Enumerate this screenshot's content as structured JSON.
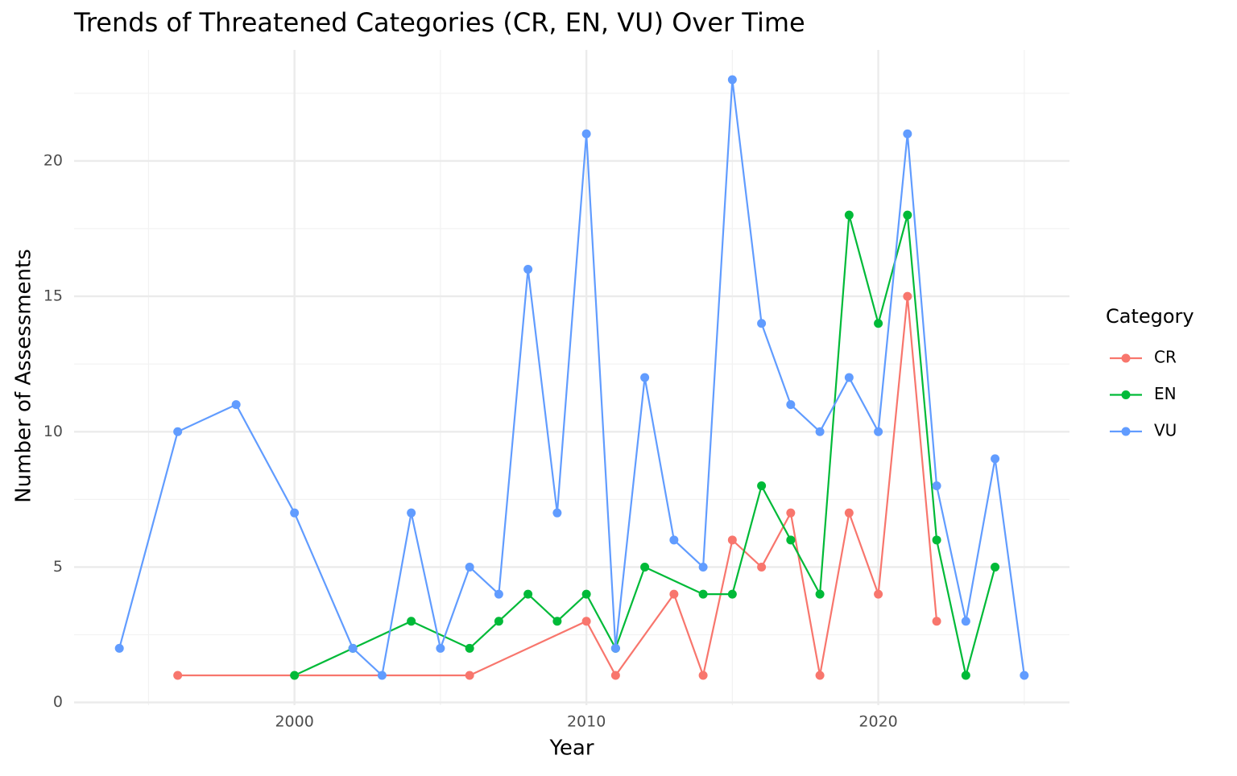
{
  "chart_data": {
    "type": "line",
    "title": "Trends of Threatened Categories (CR, EN, VU) Over Time",
    "x_label": "Year",
    "y_label": "Number of Assessments",
    "legend_title": "Category",
    "legend_position": "right",
    "series": [
      {
        "name": "CR",
        "color": "#F8766D",
        "x": [
          1996,
          2006,
          2010,
          2011,
          2013,
          2014,
          2015,
          2016,
          2017,
          2018,
          2019,
          2020,
          2021,
          2022
        ],
        "values": [
          1,
          1,
          3,
          1,
          4,
          1,
          6,
          5,
          7,
          1,
          7,
          4,
          15,
          3
        ]
      },
      {
        "name": "EN",
        "color": "#00BA38",
        "x": [
          2000,
          2002,
          2004,
          2006,
          2007,
          2008,
          2009,
          2010,
          2011,
          2012,
          2014,
          2015,
          2016,
          2017,
          2018,
          2019,
          2020,
          2021,
          2022,
          2023,
          2024
        ],
        "values": [
          1,
          2,
          3,
          2,
          3,
          4,
          3,
          4,
          2,
          5,
          4,
          4,
          8,
          6,
          4,
          18,
          14,
          18,
          6,
          1,
          5
        ]
      },
      {
        "name": "VU",
        "color": "#619CFF",
        "x": [
          1994,
          1996,
          1998,
          2000,
          2002,
          2003,
          2004,
          2005,
          2006,
          2007,
          2008,
          2009,
          2010,
          2011,
          2012,
          2013,
          2014,
          2015,
          2016,
          2017,
          2018,
          2019,
          2020,
          2021,
          2022,
          2023,
          2024,
          2025
        ],
        "values": [
          2,
          10,
          11,
          7,
          2,
          1,
          7,
          2,
          5,
          4,
          16,
          7,
          21,
          2,
          12,
          6,
          5,
          23,
          14,
          11,
          10,
          12,
          10,
          21,
          8,
          3,
          9,
          1
        ]
      }
    ],
    "xlim": [
      1992.45,
      2026.55
    ],
    "xticks": [
      2000,
      2010,
      2020
    ],
    "ylim": [
      -0.1,
      24.1
    ],
    "yticks": [
      0,
      5,
      10,
      15,
      20
    ],
    "grid": true
  }
}
